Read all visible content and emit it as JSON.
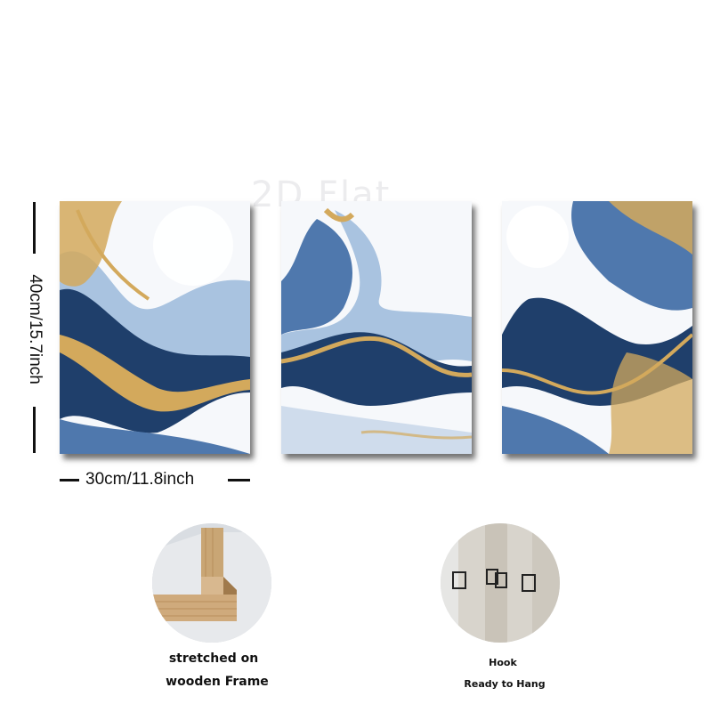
{
  "watermark": "2D Flat",
  "dimensions": {
    "height_label": "40cm/15.7inch",
    "width_label": "30cm/11.8inch"
  },
  "panels": [
    {
      "name": "abstract-blue-gold-panel-left"
    },
    {
      "name": "abstract-blue-gold-panel-center"
    },
    {
      "name": "abstract-blue-gold-panel-right"
    }
  ],
  "colors": {
    "navy": "#1f3f6b",
    "mid_blue": "#4f78ad",
    "light_blue": "#a9c3e0",
    "gold": "#d3a95c",
    "white": "#f7f9fc"
  },
  "details": {
    "frame": {
      "icon": "wooden-frame-corner",
      "caption_line1": "stretched on",
      "caption_line2": "wooden Frame"
    },
    "hook": {
      "icon": "hook-clips",
      "caption_line1": "Hook",
      "caption_line2": "Ready to Hang"
    }
  }
}
